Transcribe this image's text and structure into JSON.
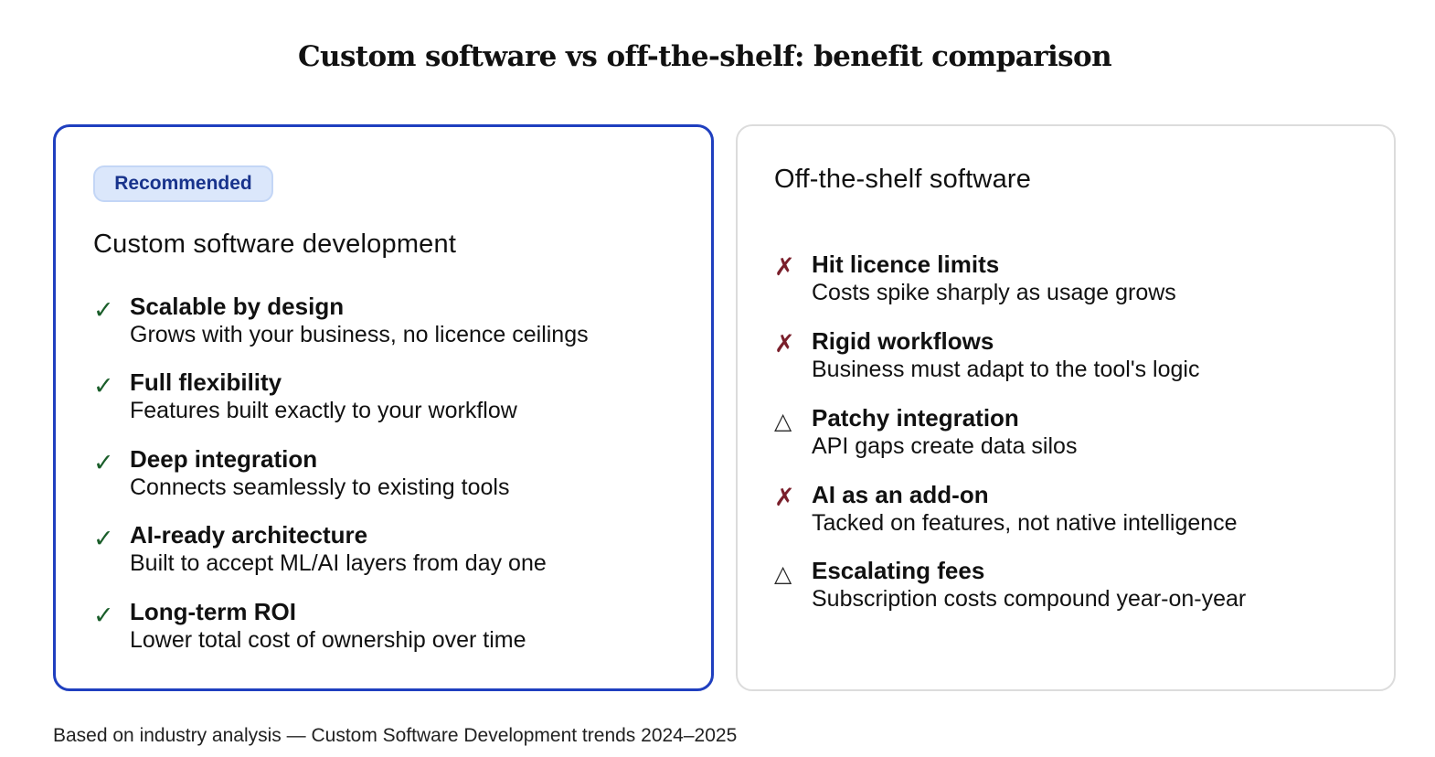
{
  "title": "Custom software vs off-the-shelf: benefit comparison",
  "left_card": {
    "badge": "Recommended",
    "heading": "Custom software development",
    "items": [
      {
        "icon": "check",
        "glyph": "✓",
        "title": "Scalable by design",
        "description": "Grows with your business, no licence ceilings"
      },
      {
        "icon": "check",
        "glyph": "✓",
        "title": "Full flexibility",
        "description": "Features built exactly to your workflow"
      },
      {
        "icon": "check",
        "glyph": "✓",
        "title": "Deep integration",
        "description": "Connects seamlessly to existing tools"
      },
      {
        "icon": "check",
        "glyph": "✓",
        "title": "AI-ready architecture",
        "description": "Built to accept ML/AI layers from day one"
      },
      {
        "icon": "check",
        "glyph": "✓",
        "title": "Long-term ROI",
        "description": "Lower total cost of ownership over time"
      }
    ]
  },
  "right_card": {
    "heading": "Off-the-shelf software",
    "items": [
      {
        "icon": "cross",
        "glyph": "✗",
        "title": "Hit licence limits",
        "description": "Costs spike sharply as usage grows"
      },
      {
        "icon": "cross",
        "glyph": "✗",
        "title": "Rigid workflows",
        "description": "Business must adapt to the tool's logic"
      },
      {
        "icon": "warning",
        "glyph": "△",
        "title": "Patchy integration",
        "description": "API gaps create data silos"
      },
      {
        "icon": "cross",
        "glyph": "✗",
        "title": "AI as an add-on",
        "description": "Tacked on features, not native intelligence"
      },
      {
        "icon": "warning",
        "glyph": "△",
        "title": "Escalating fees",
        "description": "Subscription costs compound year-on-year"
      }
    ]
  },
  "colors": {
    "accent_border": "#1f3fbf",
    "badge_bg": "#dbe7fb",
    "badge_text": "#18338c",
    "check": "#1a5e2a",
    "cross": "#7a1f2b"
  },
  "footnote": "Based on industry analysis — Custom Software Development trends 2024–2025"
}
